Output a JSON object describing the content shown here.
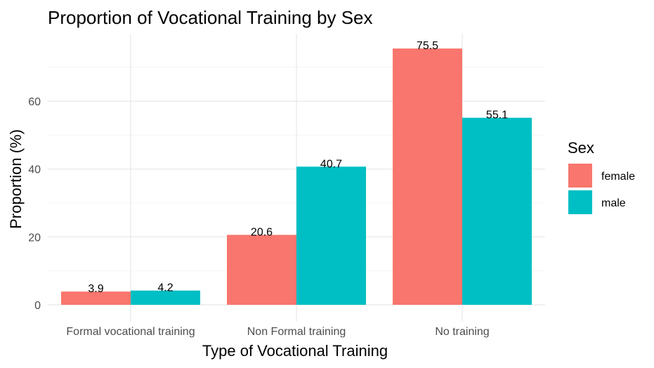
{
  "chart_data": {
    "type": "bar",
    "title": "Proportion of Vocational Training by Sex",
    "xlabel": "Type of Vocational Training",
    "ylabel": "Proportion (%)",
    "categories": [
      "Formal vocational training",
      "Non Formal training",
      "No training"
    ],
    "series": [
      {
        "name": "female",
        "color": "#F8766D",
        "values": [
          3.9,
          20.6,
          75.5
        ]
      },
      {
        "name": "male",
        "color": "#00BFC4",
        "values": [
          4.2,
          40.7,
          55.1
        ]
      }
    ],
    "ylim": [
      0,
      80
    ],
    "yticks": [
      0,
      20,
      40,
      60
    ],
    "grid": true,
    "legend": {
      "title": "Sex",
      "placement": "right"
    }
  }
}
